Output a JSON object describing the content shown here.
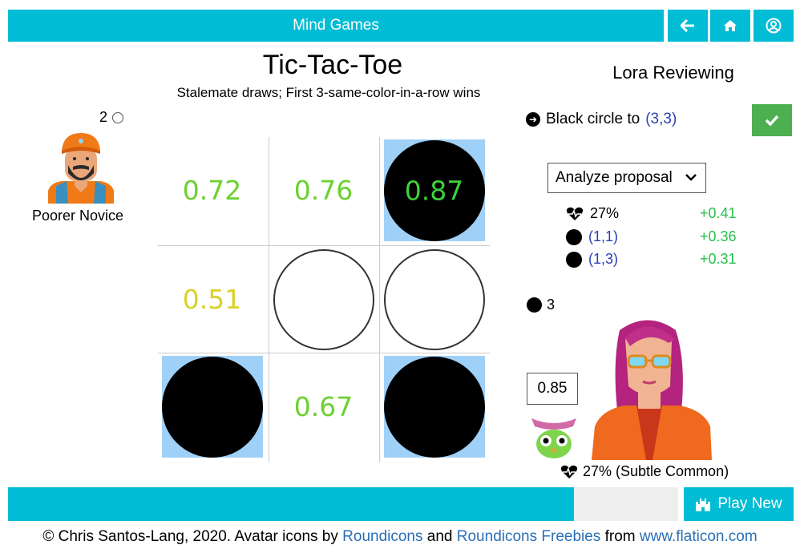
{
  "header": {
    "title": "Mind Games",
    "back_icon": "arrow-left-icon",
    "home_icon": "home-icon",
    "account_icon": "user-circle-icon"
  },
  "game": {
    "title": "Tic-Tac-Toe",
    "subtitle": "Stalemate draws; First 3-same-color-in-a-row wins"
  },
  "left_player": {
    "score": "2",
    "name": "Poorer Novice"
  },
  "board": {
    "cells": [
      {
        "row": 1,
        "col": 1,
        "piece": "none",
        "value": "0.72",
        "value_color": "#6cd12f",
        "highlight": false
      },
      {
        "row": 1,
        "col": 2,
        "piece": "none",
        "value": "0.76",
        "value_color": "#6cd12f",
        "highlight": false
      },
      {
        "row": 1,
        "col": 3,
        "piece": "black",
        "value": "0.87",
        "value_color": "#3fd13a",
        "highlight": true
      },
      {
        "row": 2,
        "col": 1,
        "piece": "none",
        "value": "0.51",
        "value_color": "#d8d22a",
        "highlight": false
      },
      {
        "row": 2,
        "col": 2,
        "piece": "white",
        "value": "",
        "value_color": "",
        "highlight": false
      },
      {
        "row": 2,
        "col": 3,
        "piece": "white",
        "value": "",
        "value_color": "",
        "highlight": false
      },
      {
        "row": 3,
        "col": 1,
        "piece": "black",
        "value": "",
        "value_color": "",
        "highlight": true
      },
      {
        "row": 3,
        "col": 2,
        "piece": "none",
        "value": "0.67",
        "value_color": "#6cd12f",
        "highlight": false
      },
      {
        "row": 3,
        "col": 3,
        "piece": "black",
        "value": "",
        "value_color": "",
        "highlight": true
      }
    ]
  },
  "reviewer": {
    "title": "Lora Reviewing"
  },
  "proposal": {
    "text": "Black circle to",
    "coord": "(3,3)"
  },
  "analyze": {
    "label": "Analyze proposal"
  },
  "analysis": [
    {
      "label": "27%",
      "icon": "heartbeat-icon",
      "delta": "+0.41"
    },
    {
      "label": "(1,1)",
      "icon": "black-circle-icon",
      "delta": "+0.36"
    },
    {
      "label": "(1,3)",
      "icon": "black-circle-icon",
      "delta": "+0.31"
    }
  ],
  "right_player": {
    "score": "3",
    "rating": "0.85",
    "health": "27% (Subtle Common)"
  },
  "footer": {
    "prefix": "© Chris Santos-Lang, 2020. Avatar icons by ",
    "link1": "Roundicons",
    "and": " and ",
    "link2": "Roundicons Freebies",
    "from": " from ",
    "link3": "www.flaticon.com"
  },
  "play_new": {
    "label": "Play New"
  },
  "colors": {
    "accent": "#00bcd4",
    "confirm": "#4caf50",
    "highlight": "#9fd0f7",
    "positive": "#27c04f",
    "coord": "#2a3fb5"
  }
}
